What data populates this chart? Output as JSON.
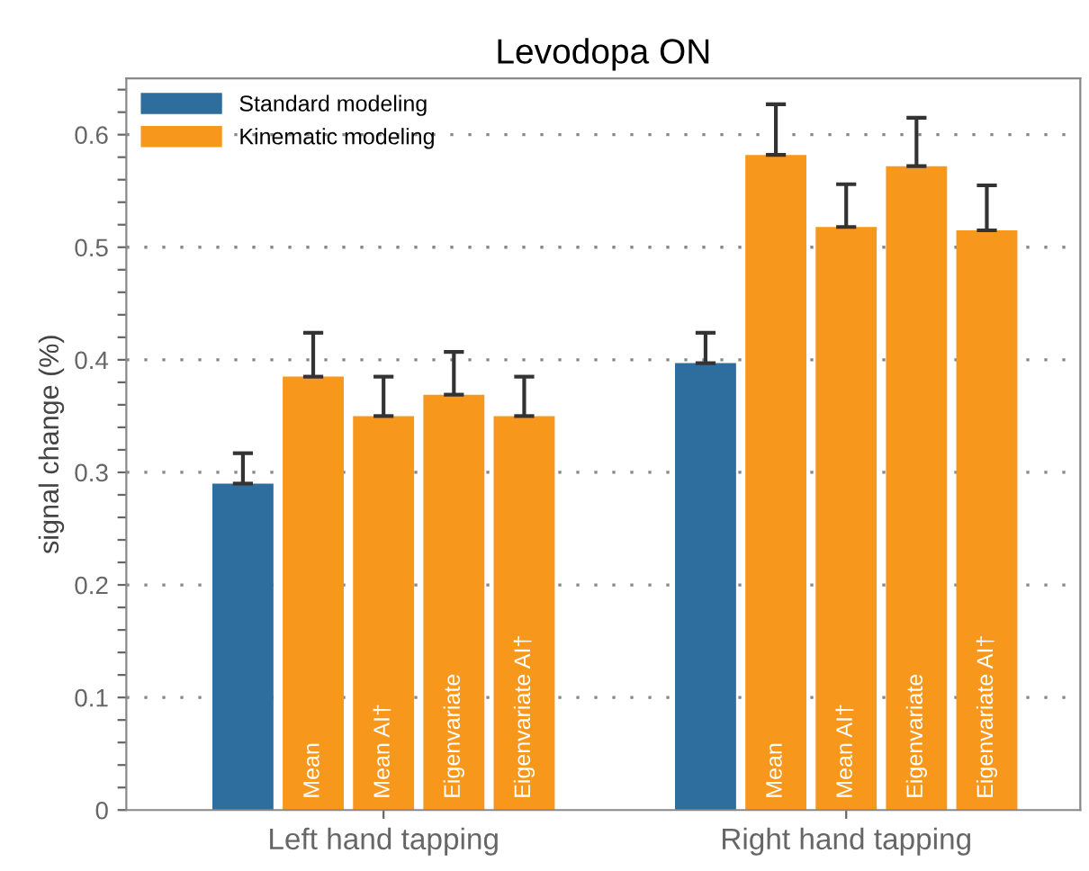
{
  "chart_data": {
    "type": "bar",
    "title": "Levodopa ON",
    "ylabel": "signal change (%)",
    "categories": [
      "Left hand tapping",
      "Right hand tapping"
    ],
    "series": [
      {
        "name": "Standard modeling",
        "color": "#2e6e9e",
        "values": [
          0.29,
          0.397
        ],
        "errors": [
          [
            0.29,
            0.317
          ],
          [
            0.397,
            0.424
          ]
        ]
      },
      {
        "name": "Mean",
        "color": "#f7981d",
        "values": [
          0.385,
          0.582
        ],
        "errors": [
          [
            0.385,
            0.424
          ],
          [
            0.582,
            0.627
          ]
        ]
      },
      {
        "name": "Mean AI†",
        "color": "#f7981d",
        "values": [
          0.35,
          0.518
        ],
        "errors": [
          [
            0.35,
            0.385
          ],
          [
            0.518,
            0.556
          ]
        ]
      },
      {
        "name": "Eigenvariate",
        "color": "#f7981d",
        "values": [
          0.369,
          0.572
        ],
        "errors": [
          [
            0.369,
            0.407
          ],
          [
            0.572,
            0.615
          ]
        ]
      },
      {
        "name": "Eigenvariate AI†",
        "color": "#f7981d",
        "values": [
          0.35,
          0.515
        ],
        "errors": [
          [
            0.35,
            0.385
          ],
          [
            0.515,
            0.555
          ]
        ]
      }
    ],
    "annotations": [
      "Kinematic modeling"
    ],
    "ylim": [
      0,
      0.65
    ],
    "yticks": [
      0,
      {
        "value": 0.02,
        "label": null
      },
      {
        "value": 0.04,
        "label": null
      },
      {
        "value": 0.06,
        "label": null
      },
      {
        "value": 0.08,
        "label": null
      },
      0.1,
      {
        "value": 0.12,
        "label": null
      },
      {
        "value": 0.14,
        "label": null
      },
      {
        "value": 0.16,
        "label": null
      },
      {
        "value": 0.18,
        "label": null
      },
      0.2,
      {
        "value": 0.22,
        "label": null
      },
      {
        "value": 0.24,
        "label": null
      },
      {
        "value": 0.26,
        "label": null
      },
      {
        "value": 0.28,
        "label": null
      },
      0.3,
      {
        "value": 0.32,
        "label": null
      },
      {
        "value": 0.34,
        "label": null
      },
      {
        "value": 0.36,
        "label": null
      },
      {
        "value": 0.38,
        "label": null
      },
      0.4,
      {
        "value": 0.42,
        "label": null
      },
      {
        "value": 0.44,
        "label": null
      },
      {
        "value": 0.46,
        "label": null
      },
      {
        "value": 0.48,
        "label": null
      },
      0.5,
      {
        "value": 0.52,
        "label": null
      },
      {
        "value": 0.54,
        "label": null
      },
      {
        "value": 0.56,
        "label": null
      },
      {
        "value": 0.58,
        "label": null
      },
      0.6,
      {
        "value": 0.62,
        "label": null
      },
      {
        "value": 0.64,
        "label": null
      }
    ],
    "grid": "y",
    "legend": "top left"
  }
}
